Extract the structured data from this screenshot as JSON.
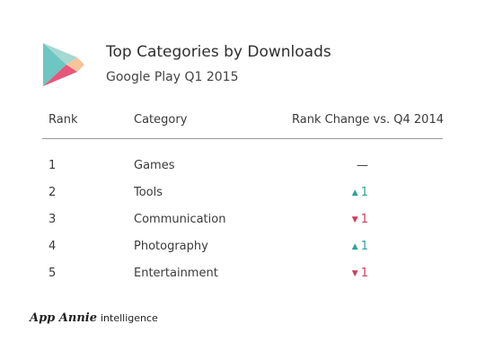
{
  "header": {
    "title": "Top Categories by Downloads",
    "subtitle": "Google Play Q1 2015",
    "logo_icon": "google-play-logo-icon"
  },
  "table": {
    "columns": {
      "rank": "Rank",
      "category": "Category",
      "change": "Rank Change vs. Q4 2014"
    },
    "rows": [
      {
        "rank": "1",
        "category": "Games",
        "change_arrow": "",
        "change_value": "—",
        "direction": "none"
      },
      {
        "rank": "2",
        "category": "Tools",
        "change_arrow": "▲",
        "change_value": "1",
        "direction": "up"
      },
      {
        "rank": "3",
        "category": "Communication",
        "change_arrow": "▼",
        "change_value": "1",
        "direction": "down"
      },
      {
        "rank": "4",
        "category": "Photography",
        "change_arrow": "▲",
        "change_value": "1",
        "direction": "up"
      },
      {
        "rank": "5",
        "category": "Entertainment",
        "change_arrow": "▼",
        "change_value": "1",
        "direction": "down"
      }
    ]
  },
  "footer": {
    "brand_name": "App Annie",
    "brand_sub": "intelligence"
  },
  "colors": {
    "up": "#2aa39a",
    "down": "#d33b5a",
    "divider": "#9a9a9a"
  }
}
